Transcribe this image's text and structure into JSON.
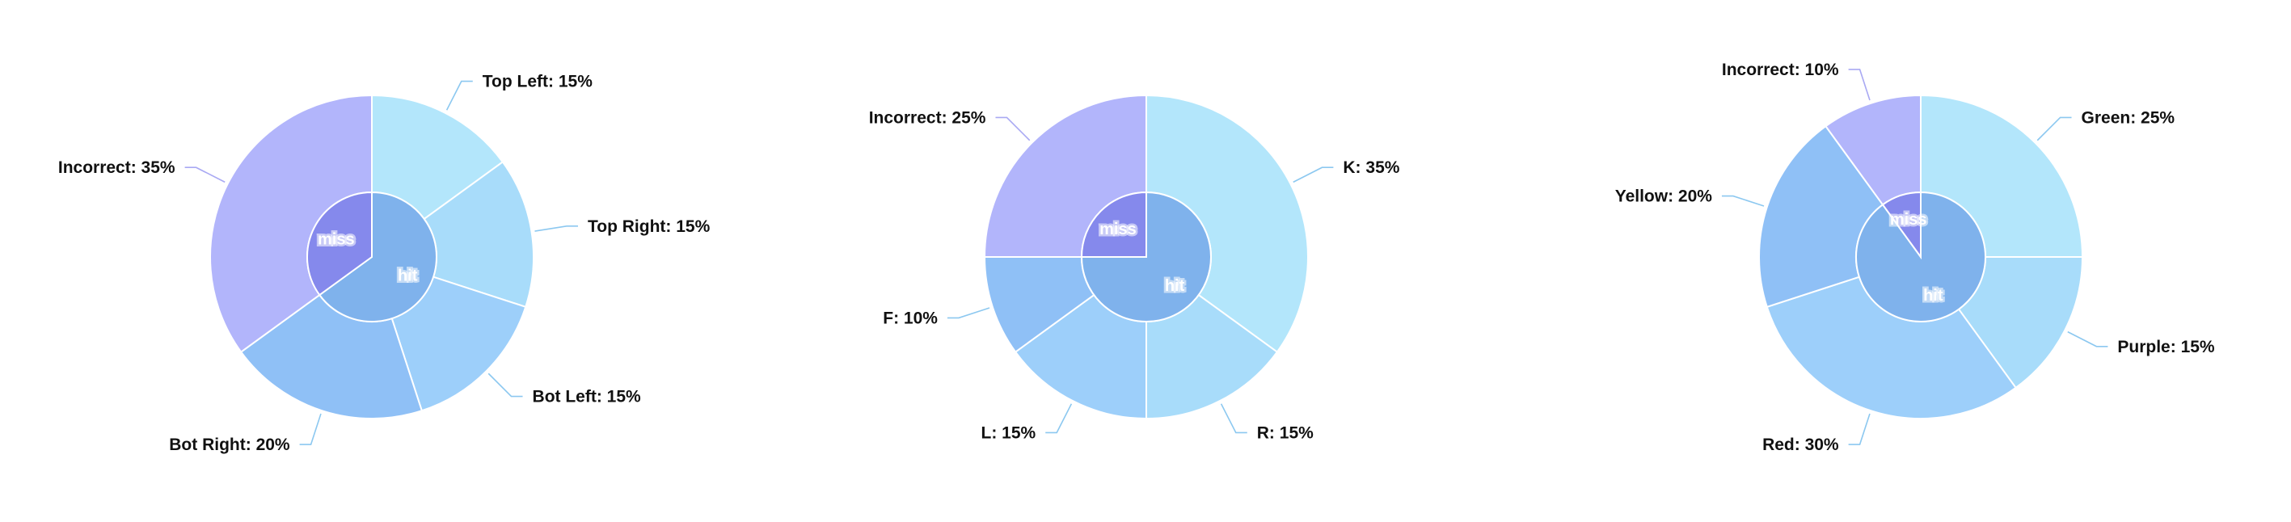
{
  "colors": {
    "outer_correct": [
      "#b3e6fb",
      "#a8dcfa",
      "#9dcffa",
      "#8fc0f6",
      "#b9f0ff"
    ],
    "outer_incorrect": "#b2b5fb",
    "inner_hit": "#7fb2ec",
    "inner_miss": "#8589ec",
    "slice_border": "#ffffff",
    "leader_outer": "#8cc8f0",
    "leader_incorrect": "#a9a9f3"
  },
  "chart_data": [
    {
      "type": "pie",
      "variant": "nested-donut",
      "inner": {
        "categories": [
          "hit",
          "miss"
        ]
      },
      "outer": {
        "categories": [
          "Top Left",
          "Top Right",
          "Bot Left",
          "Bot Right",
          "Incorrect"
        ],
        "values": [
          15,
          15,
          15,
          20,
          35
        ],
        "labels": [
          "Top Left: 15%",
          "Top Right: 15%",
          "Bot Left: 15%",
          "Bot Right: 20%",
          "Incorrect: 35%"
        ]
      }
    },
    {
      "type": "pie",
      "variant": "nested-donut",
      "inner": {
        "categories": [
          "hit",
          "miss"
        ]
      },
      "outer": {
        "categories": [
          "K",
          "R",
          "L",
          "F",
          "Incorrect"
        ],
        "values": [
          35,
          15,
          15,
          10,
          25
        ],
        "labels": [
          "K: 35%",
          "R: 15%",
          "L: 15%",
          "F: 10%",
          "Incorrect: 25%"
        ]
      }
    },
    {
      "type": "pie",
      "variant": "nested-donut",
      "inner": {
        "categories": [
          "hit",
          "miss"
        ]
      },
      "outer": {
        "categories": [
          "Green",
          "Purple",
          "Red",
          "Yellow",
          "Incorrect"
        ],
        "values": [
          25,
          15,
          30,
          20,
          10
        ],
        "labels": [
          "Green: 25%",
          "Purple: 15%",
          "Red: 30%",
          "Yellow: 20%",
          "Incorrect: 10%"
        ]
      }
    }
  ]
}
